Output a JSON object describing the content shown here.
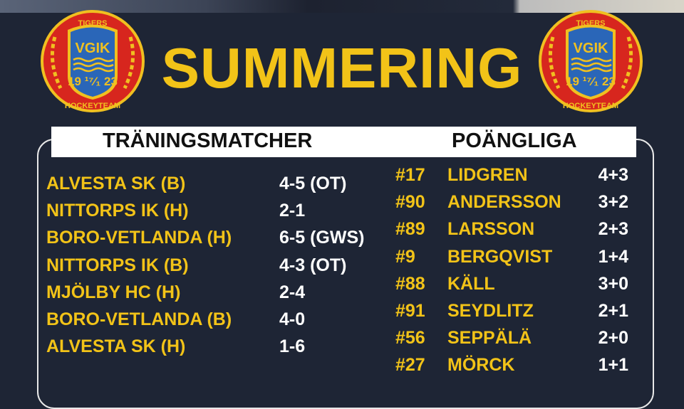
{
  "title": "SUMMERING",
  "logo": {
    "text_top": "TIGERS",
    "text_mid": "VGIK",
    "year": "19 17/1 23",
    "text_bottom": "HOCKEYTEAM"
  },
  "colors": {
    "background": "#1e2535",
    "accent": "#f2c318",
    "banner": "#ffffff"
  },
  "training": {
    "header": "TRÄNINGSMATCHER",
    "matches": [
      {
        "team": "ALVESTA SK (B)",
        "score": "4-5 (OT)"
      },
      {
        "team": "NITTORPS IK (H)",
        "score": "2-1"
      },
      {
        "team": "BORO-VETLANDA (H)",
        "score": "6-5 (GWS)"
      },
      {
        "team": "NITTORPS IK (B)",
        "score": "4-3 (OT)"
      },
      {
        "team": "MJÖLBY HC (H)",
        "score": "2-4"
      },
      {
        "team": "BORO-VETLANDA (B)",
        "score": "4-0"
      },
      {
        "team": "ALVESTA SK (H)",
        "score": "1-6"
      }
    ]
  },
  "points": {
    "header": "POÄNGLIGA",
    "players": [
      {
        "number": "#17",
        "name": "LIDGREN",
        "points": "4+3"
      },
      {
        "number": "#90",
        "name": "ANDERSSON",
        "points": "3+2"
      },
      {
        "number": "#89",
        "name": "LARSSON",
        "points": "2+3"
      },
      {
        "number": "#9",
        "name": "BERGQVIST",
        "points": "1+4"
      },
      {
        "number": "#88",
        "name": "KÄLL",
        "points": "3+0"
      },
      {
        "number": "#91",
        "name": "SEYDLITZ",
        "points": "2+1"
      },
      {
        "number": "#56",
        "name": "SEPPÄLÄ",
        "points": "2+0"
      },
      {
        "number": "#27",
        "name": "MÖRCK",
        "points": "1+1"
      }
    ]
  }
}
